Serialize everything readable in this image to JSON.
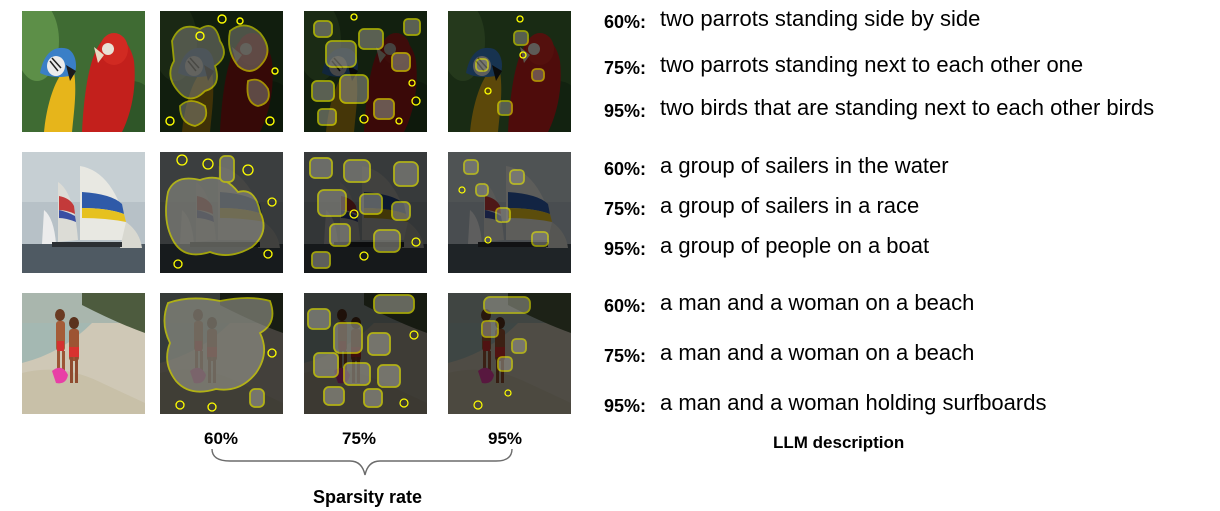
{
  "columns": [
    "60%",
    "75%",
    "95%"
  ],
  "axis_label": "Sparsity rate",
  "description_header": "LLM description",
  "rows": [
    {
      "name": "parrots",
      "descriptions": [
        {
          "rate": "60%:",
          "text": "two parrots standing side by side"
        },
        {
          "rate": "75%:",
          "text": "two parrots standing next to each other one"
        },
        {
          "rate": "95%:",
          "text": "two birds that are standing next to each other birds"
        }
      ]
    },
    {
      "name": "sailboats",
      "descriptions": [
        {
          "rate": "60%:",
          "text": "a group of sailers in the water"
        },
        {
          "rate": "75%:",
          "text": "a group of sailers in a race"
        },
        {
          "rate": "95%:",
          "text": "a group of people on a boat"
        }
      ]
    },
    {
      "name": "beach",
      "descriptions": [
        {
          "rate": "60%:",
          "text": "a man and a woman on a beach"
        },
        {
          "rate": "75%:",
          "text": "a man and a woman on a beach"
        },
        {
          "rate": "95%:",
          "text": "a man and a woman holding surfboards"
        }
      ]
    }
  ],
  "colors": {
    "highlight_outline": "#ffff00",
    "mask_overlay": "#000000"
  }
}
